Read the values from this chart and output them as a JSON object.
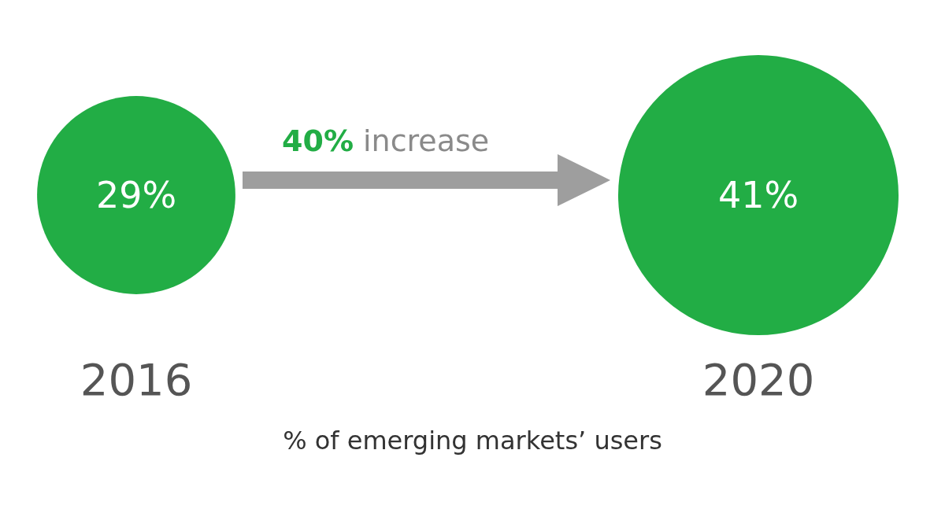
{
  "chart_data": {
    "type": "other",
    "categories": [
      "2016",
      "2020"
    ],
    "series": [
      {
        "color": "#22ad45",
        "values": [
          29,
          41
        ],
        "value_labels": [
          "29%",
          "41%"
        ]
      }
    ],
    "annotations": [
      "40% increase",
      "% of emerging markets’ users"
    ]
  }
}
